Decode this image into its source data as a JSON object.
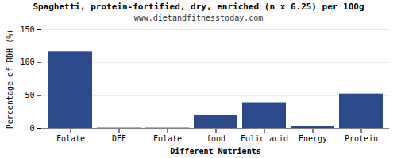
{
  "chart_data": {
    "type": "bar",
    "title": "Spaghetti, protein-fortified, dry, enriched (n x 6.25) per 100g",
    "subtitle": "www.dietandfitnesstoday.com",
    "xlabel": "Different Nutrients",
    "ylabel": "Percentage of RDH (%)",
    "categories": [
      "Folate",
      "DFE",
      "Folate",
      "food",
      "Folic acid",
      "Energy",
      "Protein"
    ],
    "values": [
      116,
      0.5,
      0.5,
      20,
      39,
      3,
      52
    ],
    "color": "#2b4a8b",
    "ylim": [
      0,
      150
    ],
    "yticks": [
      0,
      50,
      100,
      150
    ],
    "grid": true
  }
}
